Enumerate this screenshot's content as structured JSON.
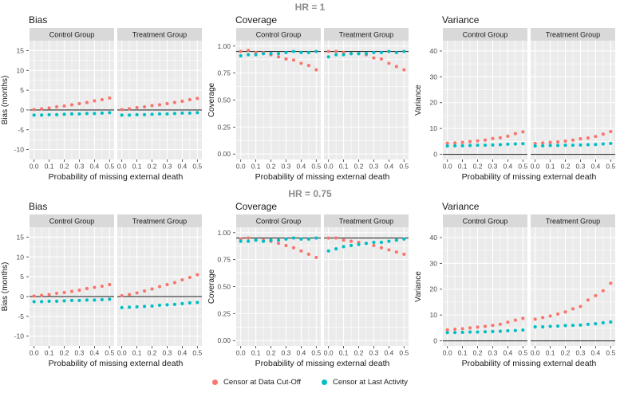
{
  "figure": {
    "row_titles": [
      "HR = 1",
      "HR = 0.75"
    ],
    "x_label": "Probability of missing external death",
    "legend": [
      {
        "label": "Censor at Data Cut-Off",
        "color": "#F8766D"
      },
      {
        "label": "Censor at Last Activity",
        "color": "#00BFC4"
      }
    ]
  },
  "colors": {
    "series_red": "#F8766D",
    "series_teal": "#00BFC4",
    "panel_bg": "#EBEBEB",
    "strip_bg": "#D9D9D9",
    "grid": "#FFFFFF",
    "row_title_gray": "#8C8C8C",
    "text": "#1a1a1a",
    "axis_text": "#4D4D4D",
    "ref_line": "#333333"
  },
  "chart_data": [
    {
      "type": "scatter",
      "row_group": "HR = 1",
      "title": "Bias",
      "ylabel": "Bias (months)",
      "xlabel": "Probability of missing external death",
      "x": [
        0.0,
        0.05,
        0.1,
        0.15,
        0.2,
        0.25,
        0.3,
        0.35,
        0.4,
        0.45,
        0.5
      ],
      "xtick_labels": [
        "0.0",
        "0.1",
        "0.2",
        "0.3",
        "0.4",
        "0.5"
      ],
      "xtick_vals": [
        0.0,
        0.1,
        0.2,
        0.3,
        0.4,
        0.5
      ],
      "xlim": [
        -0.03,
        0.53
      ],
      "ytick_vals": [
        -10,
        -5,
        0,
        5,
        10,
        15
      ],
      "ytick_labels": [
        "-10",
        "-5",
        "0",
        "5",
        "10",
        "15"
      ],
      "ylim": [
        -12.5,
        17.5
      ],
      "ref_line": 0,
      "legend_position": "none",
      "grid": true,
      "facets": [
        {
          "label": "Control Group",
          "series": [
            {
              "name": "Censor at Data Cut-Off",
              "values": [
                0.1,
                0.3,
                0.5,
                0.8,
                1.0,
                1.3,
                1.6,
                1.9,
                2.3,
                2.6,
                3.0
              ]
            },
            {
              "name": "Censor at Last Activity",
              "values": [
                -1.3,
                -1.3,
                -1.2,
                -1.2,
                -1.1,
                -1.0,
                -1.0,
                -0.9,
                -0.9,
                -0.8,
                -0.7
              ]
            }
          ]
        },
        {
          "label": "Treatment Group",
          "series": [
            {
              "name": "Censor at Data Cut-Off",
              "values": [
                0.1,
                0.3,
                0.6,
                0.8,
                1.1,
                1.3,
                1.6,
                1.9,
                2.2,
                2.6,
                2.9
              ]
            },
            {
              "name": "Censor at Last Activity",
              "values": [
                -1.3,
                -1.3,
                -1.2,
                -1.2,
                -1.1,
                -1.0,
                -1.0,
                -0.9,
                -0.8,
                -0.8,
                -0.7
              ]
            }
          ]
        }
      ]
    },
    {
      "type": "scatter",
      "row_group": "HR = 1",
      "title": "Coverage",
      "ylabel": "Coverage",
      "xlabel": "Probability of missing external death",
      "x": [
        0.0,
        0.05,
        0.1,
        0.15,
        0.2,
        0.25,
        0.3,
        0.35,
        0.4,
        0.45,
        0.5
      ],
      "xtick_labels": [
        "0.0",
        "0.1",
        "0.2",
        "0.3",
        "0.4",
        "0.5"
      ],
      "xtick_vals": [
        0.0,
        0.1,
        0.2,
        0.3,
        0.4,
        0.5
      ],
      "xlim": [
        -0.03,
        0.53
      ],
      "ytick_vals": [
        0.0,
        0.25,
        0.5,
        0.75,
        1.0
      ],
      "ytick_labels": [
        "0.00",
        "0.25",
        "0.50",
        "0.75",
        "1.00"
      ],
      "ylim": [
        -0.05,
        1.05
      ],
      "ref_line": 0.95,
      "legend_position": "none",
      "grid": true,
      "facets": [
        {
          "label": "Control Group",
          "series": [
            {
              "name": "Censor at Data Cut-Off",
              "values": [
                0.95,
                0.96,
                0.94,
                0.94,
                0.92,
                0.9,
                0.88,
                0.87,
                0.84,
                0.82,
                0.78
              ]
            },
            {
              "name": "Censor at Last Activity",
              "values": [
                0.91,
                0.92,
                0.92,
                0.93,
                0.93,
                0.93,
                0.94,
                0.95,
                0.94,
                0.94,
                0.95
              ]
            }
          ]
        },
        {
          "label": "Treatment Group",
          "series": [
            {
              "name": "Censor at Data Cut-Off",
              "values": [
                0.95,
                0.95,
                0.94,
                0.93,
                0.93,
                0.92,
                0.89,
                0.88,
                0.84,
                0.81,
                0.78
              ]
            },
            {
              "name": "Censor at Last Activity",
              "values": [
                0.9,
                0.92,
                0.92,
                0.93,
                0.93,
                0.93,
                0.94,
                0.94,
                0.95,
                0.94,
                0.95
              ]
            }
          ]
        }
      ]
    },
    {
      "type": "scatter",
      "row_group": "HR = 1",
      "title": "Variance",
      "ylabel": "Variance",
      "xlabel": "Probability of missing external death",
      "x": [
        0.0,
        0.05,
        0.1,
        0.15,
        0.2,
        0.25,
        0.3,
        0.35,
        0.4,
        0.45,
        0.5
      ],
      "xtick_labels": [
        "0.0",
        "0.1",
        "0.2",
        "0.3",
        "0.4",
        "0.5"
      ],
      "xtick_vals": [
        0.0,
        0.1,
        0.2,
        0.3,
        0.4,
        0.5
      ],
      "xlim": [
        -0.03,
        0.53
      ],
      "ytick_vals": [
        0,
        10,
        20,
        30,
        40
      ],
      "ytick_labels": [
        "0",
        "10",
        "20",
        "30",
        "40"
      ],
      "ylim": [
        -2,
        44
      ],
      "ref_line": 0,
      "legend_position": "none",
      "grid": true,
      "facets": [
        {
          "label": "Control Group",
          "series": [
            {
              "name": "Censor at Data Cut-Off",
              "values": [
                4.3,
                4.4,
                4.6,
                4.9,
                5.2,
                5.5,
                6.1,
                6.4,
                7.0,
                8.0,
                8.7
              ]
            },
            {
              "name": "Censor at Last Activity",
              "values": [
                3.2,
                3.3,
                3.3,
                3.4,
                3.5,
                3.5,
                3.6,
                3.7,
                3.9,
                4.0,
                4.1
              ]
            }
          ]
        },
        {
          "label": "Treatment Group",
          "series": [
            {
              "name": "Censor at Data Cut-Off",
              "values": [
                4.2,
                4.4,
                4.6,
                4.8,
                5.1,
                5.5,
                6.0,
                6.3,
                6.9,
                7.8,
                8.8
              ]
            },
            {
              "name": "Censor at Last Activity",
              "values": [
                3.2,
                3.3,
                3.4,
                3.4,
                3.5,
                3.5,
                3.6,
                3.7,
                3.8,
                4.0,
                4.2
              ]
            }
          ]
        }
      ]
    },
    {
      "type": "scatter",
      "row_group": "HR = 0.75",
      "title": "Bias",
      "ylabel": "Bias (months)",
      "xlabel": "Probability of missing external death",
      "x": [
        0.0,
        0.05,
        0.1,
        0.15,
        0.2,
        0.25,
        0.3,
        0.35,
        0.4,
        0.45,
        0.5
      ],
      "xtick_labels": [
        "0.0",
        "0.1",
        "0.2",
        "0.3",
        "0.4",
        "0.5"
      ],
      "xtick_vals": [
        0.0,
        0.1,
        0.2,
        0.3,
        0.4,
        0.5
      ],
      "xlim": [
        -0.03,
        0.53
      ],
      "ytick_vals": [
        -10,
        -5,
        0,
        5,
        10,
        15
      ],
      "ytick_labels": [
        "-10",
        "-5",
        "0",
        "5",
        "10",
        "15"
      ],
      "ylim": [
        -12.5,
        17.5
      ],
      "ref_line": 0,
      "legend_position": "none",
      "grid": true,
      "facets": [
        {
          "label": "Control Group",
          "series": [
            {
              "name": "Censor at Data Cut-Off",
              "values": [
                0.1,
                0.3,
                0.5,
                0.8,
                1.0,
                1.3,
                1.6,
                2.0,
                2.3,
                2.6,
                3.0
              ]
            },
            {
              "name": "Censor at Last Activity",
              "values": [
                -1.3,
                -1.3,
                -1.2,
                -1.2,
                -1.1,
                -1.0,
                -1.0,
                -0.9,
                -0.9,
                -0.8,
                -0.7
              ]
            }
          ]
        },
        {
          "label": "Treatment Group",
          "series": [
            {
              "name": "Censor at Data Cut-Off",
              "values": [
                0.2,
                0.5,
                0.9,
                1.4,
                1.9,
                2.5,
                3.0,
                3.5,
                4.2,
                4.8,
                5.5
              ]
            },
            {
              "name": "Censor at Last Activity",
              "values": [
                -2.8,
                -2.7,
                -2.6,
                -2.5,
                -2.4,
                -2.2,
                -2.1,
                -2.0,
                -1.8,
                -1.6,
                -1.5
              ]
            }
          ]
        }
      ]
    },
    {
      "type": "scatter",
      "row_group": "HR = 0.75",
      "title": "Coverage",
      "ylabel": "Coverage",
      "xlabel": "Probability of missing external death",
      "x": [
        0.0,
        0.05,
        0.1,
        0.15,
        0.2,
        0.25,
        0.3,
        0.35,
        0.4,
        0.45,
        0.5
      ],
      "xtick_labels": [
        "0.0",
        "0.1",
        "0.2",
        "0.3",
        "0.4",
        "0.5"
      ],
      "xtick_vals": [
        0.0,
        0.1,
        0.2,
        0.3,
        0.4,
        0.5
      ],
      "xlim": [
        -0.03,
        0.53
      ],
      "ytick_vals": [
        0.0,
        0.25,
        0.5,
        0.75,
        1.0
      ],
      "ytick_labels": [
        "0.00",
        "0.25",
        "0.50",
        "0.75",
        "1.00"
      ],
      "ylim": [
        -0.05,
        1.05
      ],
      "ref_line": 0.95,
      "legend_position": "none",
      "grid": true,
      "facets": [
        {
          "label": "Control Group",
          "series": [
            {
              "name": "Censor at Data Cut-Off",
              "values": [
                0.94,
                0.95,
                0.93,
                0.93,
                0.92,
                0.9,
                0.88,
                0.86,
                0.83,
                0.8,
                0.77
              ]
            },
            {
              "name": "Censor at Last Activity",
              "values": [
                0.92,
                0.92,
                0.93,
                0.92,
                0.93,
                0.93,
                0.94,
                0.95,
                0.94,
                0.94,
                0.95
              ]
            }
          ]
        },
        {
          "label": "Treatment Group",
          "series": [
            {
              "name": "Censor at Data Cut-Off",
              "values": [
                0.95,
                0.95,
                0.93,
                0.92,
                0.91,
                0.9,
                0.88,
                0.86,
                0.84,
                0.82,
                0.8
              ]
            },
            {
              "name": "Censor at Last Activity",
              "values": [
                0.83,
                0.85,
                0.87,
                0.88,
                0.89,
                0.9,
                0.91,
                0.91,
                0.92,
                0.93,
                0.94
              ]
            }
          ]
        }
      ]
    },
    {
      "type": "scatter",
      "row_group": "HR = 0.75",
      "title": "Variance",
      "ylabel": "Variance",
      "xlabel": "Probability of missing external death",
      "x": [
        0.0,
        0.05,
        0.1,
        0.15,
        0.2,
        0.25,
        0.3,
        0.35,
        0.4,
        0.45,
        0.5
      ],
      "xtick_labels": [
        "0.0",
        "0.1",
        "0.2",
        "0.3",
        "0.4",
        "0.5"
      ],
      "xtick_vals": [
        0.0,
        0.1,
        0.2,
        0.3,
        0.4,
        0.5
      ],
      "xlim": [
        -0.03,
        0.53
      ],
      "ytick_vals": [
        0,
        10,
        20,
        30,
        40
      ],
      "ytick_labels": [
        "0",
        "10",
        "20",
        "30",
        "40"
      ],
      "ylim": [
        -2,
        44
      ],
      "ref_line": 0,
      "legend_position": "none",
      "grid": true,
      "facets": [
        {
          "label": "Control Group",
          "series": [
            {
              "name": "Censor at Data Cut-Off",
              "values": [
                4.3,
                4.5,
                4.7,
                5.0,
                5.3,
                5.6,
                6.0,
                6.4,
                7.2,
                8.0,
                8.7
              ]
            },
            {
              "name": "Censor at Last Activity",
              "values": [
                3.2,
                3.2,
                3.3,
                3.4,
                3.4,
                3.5,
                3.6,
                3.7,
                3.9,
                4.0,
                4.2
              ]
            }
          ]
        },
        {
          "label": "Treatment Group",
          "series": [
            {
              "name": "Censor at Data Cut-Off",
              "values": [
                8.4,
                9.0,
                9.6,
                10.4,
                11.2,
                12.4,
                13.3,
                15.8,
                17.5,
                19.4,
                22.3
              ]
            },
            {
              "name": "Censor at Last Activity",
              "values": [
                5.4,
                5.4,
                5.6,
                5.7,
                5.9,
                6.0,
                6.1,
                6.4,
                6.6,
                7.0,
                7.3
              ]
            }
          ]
        }
      ]
    }
  ]
}
